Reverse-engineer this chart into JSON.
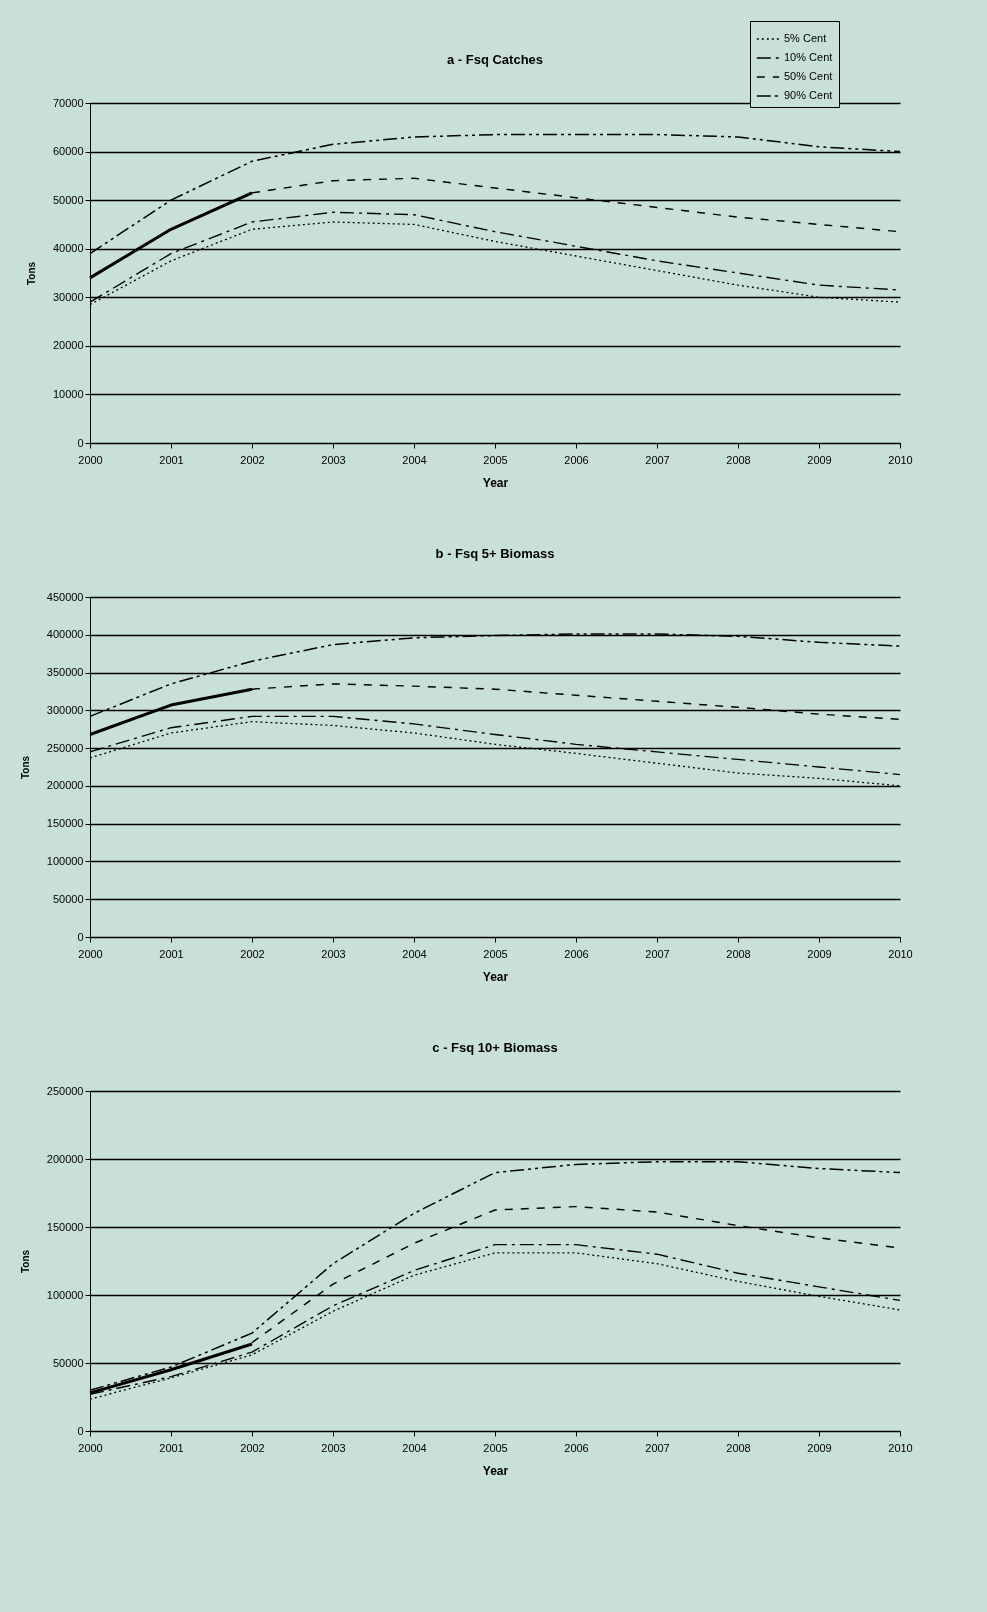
{
  "chart_data": [
    {
      "type": "line",
      "title": "a - Fsq Catches",
      "xlabel": "Year",
      "ylabel": "Tons",
      "x": [
        2000,
        2001,
        2002,
        2003,
        2004,
        2005,
        2006,
        2007,
        2008,
        2009,
        2010
      ],
      "xlim": [
        2000,
        2010
      ],
      "xticks": [
        2000,
        2001,
        2002,
        2003,
        2004,
        2005,
        2006,
        2007,
        2008,
        2009,
        2010
      ],
      "ylim": [
        0,
        70000
      ],
      "yticks": [
        0,
        10000,
        20000,
        30000,
        40000,
        50000,
        60000,
        70000
      ],
      "grid": "y",
      "legend": "top right",
      "series": [
        {
          "name": "5% Cent",
          "color": "#000000",
          "line_style": "dotted",
          "values": [
            28500,
            37500,
            44000,
            45500,
            45000,
            41500,
            38500,
            35500,
            32500,
            30000,
            29000
          ]
        },
        {
          "name": "10% Cent",
          "color": "#000000",
          "line_style": "dashed",
          "values": [
            29000,
            39000,
            45500,
            47500,
            47000,
            43500,
            40500,
            37500,
            35000,
            32500,
            31500
          ]
        },
        {
          "name": "50% Cent",
          "color": "#000000",
          "line_style": "dashed",
          "values": [
            null,
            null,
            51500,
            54000,
            54500,
            52500,
            50500,
            48500,
            46500,
            45000,
            43500
          ]
        },
        {
          "name": "90% Cent",
          "color": "#000000",
          "line_style": "dashed",
          "values": [
            39000,
            50000,
            58000,
            61500,
            63000,
            63500,
            63500,
            63500,
            63000,
            61000,
            60000
          ]
        },
        {
          "color": "#000000",
          "line_style": "solid",
          "values": [
            34000,
            44000,
            51500,
            null,
            null,
            null,
            null,
            null,
            null,
            null,
            null
          ]
        }
      ]
    },
    {
      "type": "line",
      "title": "b - Fsq 5+ Biomass",
      "xlabel": "Year",
      "ylabel": "Tons",
      "x": [
        2000,
        2001,
        2002,
        2003,
        2004,
        2005,
        2006,
        2007,
        2008,
        2009,
        2010
      ],
      "xlim": [
        2000,
        2010
      ],
      "xticks": [
        2000,
        2001,
        2002,
        2003,
        2004,
        2005,
        2006,
        2007,
        2008,
        2009,
        2010
      ],
      "ylim": [
        0,
        450000
      ],
      "yticks": [
        0,
        50000,
        100000,
        150000,
        200000,
        250000,
        300000,
        350000,
        400000,
        450000
      ],
      "grid": "y",
      "series": [
        {
          "name": "5% Cent",
          "color": "#000000",
          "line_style": "dotted",
          "values": [
            237000,
            270000,
            285000,
            280000,
            270000,
            255000,
            243000,
            230000,
            217000,
            210000,
            200000
          ]
        },
        {
          "name": "10% Cent",
          "color": "#000000",
          "line_style": "dashed",
          "values": [
            245000,
            277000,
            292000,
            292000,
            282000,
            268000,
            255000,
            245000,
            235000,
            225000,
            215000
          ]
        },
        {
          "name": "50% Cent",
          "color": "#000000",
          "line_style": "dashed",
          "values": [
            null,
            null,
            328000,
            335000,
            332000,
            328000,
            320000,
            312000,
            304000,
            295000,
            288000
          ]
        },
        {
          "name": "90% Cent",
          "color": "#000000",
          "line_style": "dashed",
          "values": [
            292000,
            335000,
            365000,
            387000,
            396000,
            399000,
            401000,
            401000,
            398000,
            390000,
            385000
          ]
        },
        {
          "color": "#000000",
          "line_style": "solid",
          "values": [
            268000,
            307000,
            328000,
            null,
            null,
            null,
            null,
            null,
            null,
            null,
            null
          ]
        }
      ]
    },
    {
      "type": "line",
      "title": "c - Fsq 10+ Biomass",
      "xlabel": "Year",
      "ylabel": "Tons",
      "x": [
        2000,
        2001,
        2002,
        2003,
        2004,
        2005,
        2006,
        2007,
        2008,
        2009,
        2010
      ],
      "xlim": [
        2000,
        2010
      ],
      "xticks": [
        2000,
        2001,
        2002,
        2003,
        2004,
        2005,
        2006,
        2007,
        2008,
        2009,
        2010
      ],
      "ylim": [
        0,
        250000
      ],
      "yticks": [
        0,
        50000,
        100000,
        150000,
        200000,
        250000
      ],
      "grid": "y",
      "series": [
        {
          "name": "5% Cent",
          "color": "#000000",
          "line_style": "dotted",
          "values": [
            23500,
            39000,
            56000,
            88000,
            114500,
            131000,
            131000,
            123000,
            110000,
            99000,
            89000
          ]
        },
        {
          "name": "10% Cent",
          "color": "#000000",
          "line_style": "dashed",
          "values": [
            27000,
            40000,
            58000,
            92000,
            118000,
            137000,
            137000,
            130000,
            116000,
            106000,
            96000
          ]
        },
        {
          "name": "50% Cent",
          "color": "#000000",
          "line_style": "dashed",
          "values": [
            null,
            null,
            65000,
            108000,
            138000,
            162500,
            165000,
            161000,
            151000,
            142000,
            134500
          ]
        },
        {
          "name": "90% Cent",
          "color": "#000000",
          "line_style": "dashed",
          "values": [
            30000,
            47000,
            72000,
            123000,
            160000,
            190000,
            196000,
            198000,
            198000,
            193000,
            190000
          ]
        },
        {
          "color": "#000000",
          "line_style": "solid",
          "values": [
            28000,
            45000,
            64000,
            null,
            null,
            null,
            null,
            null,
            null,
            null,
            null
          ]
        }
      ]
    }
  ]
}
